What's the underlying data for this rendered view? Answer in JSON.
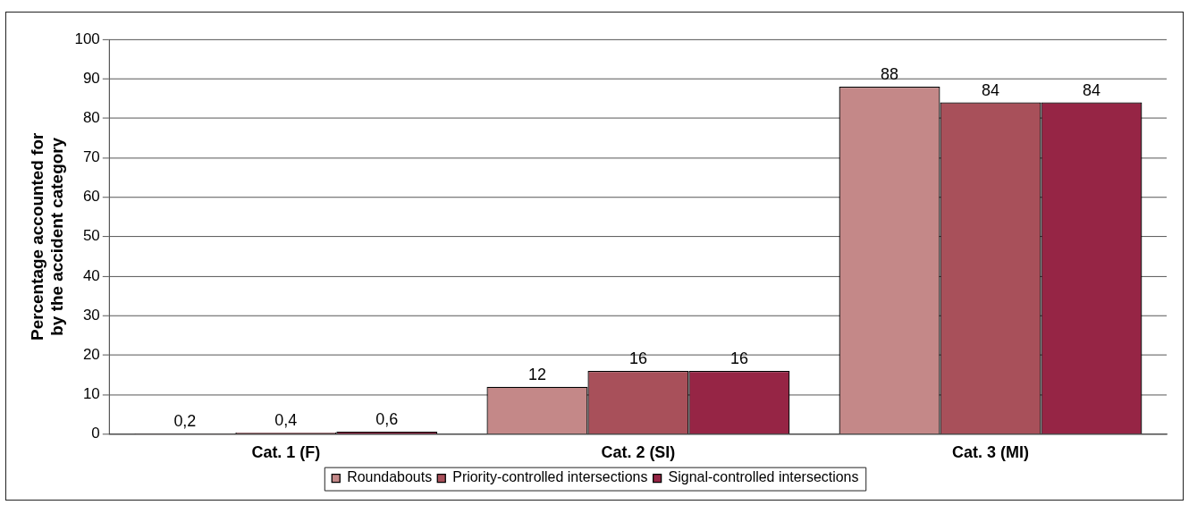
{
  "chart_data": {
    "type": "bar",
    "ylabel": "Percentage accounted for\nby the accident category",
    "categories": [
      "Cat. 1 (F)",
      "Cat. 2 (SI)",
      "Cat. 3 (MI)"
    ],
    "series": [
      {
        "name": "Roundabouts",
        "color": "#c48888",
        "values": [
          0.2,
          12,
          88
        ],
        "value_labels": [
          "0,2",
          "12",
          "88"
        ]
      },
      {
        "name": "Priority-controlled intersections",
        "color": "#a8505a",
        "values": [
          0.4,
          16,
          84
        ],
        "value_labels": [
          "0,4",
          "16",
          "84"
        ]
      },
      {
        "name": "Signal-controlled intersections",
        "color": "#962545",
        "values": [
          0.6,
          16,
          84
        ],
        "value_labels": [
          "0,6",
          "16",
          "84"
        ]
      }
    ],
    "ylim": [
      0,
      100
    ],
    "yticks": [
      0,
      10,
      20,
      30,
      40,
      50,
      60,
      70,
      80,
      90,
      100
    ],
    "grid": "y",
    "legend": "bottom"
  }
}
